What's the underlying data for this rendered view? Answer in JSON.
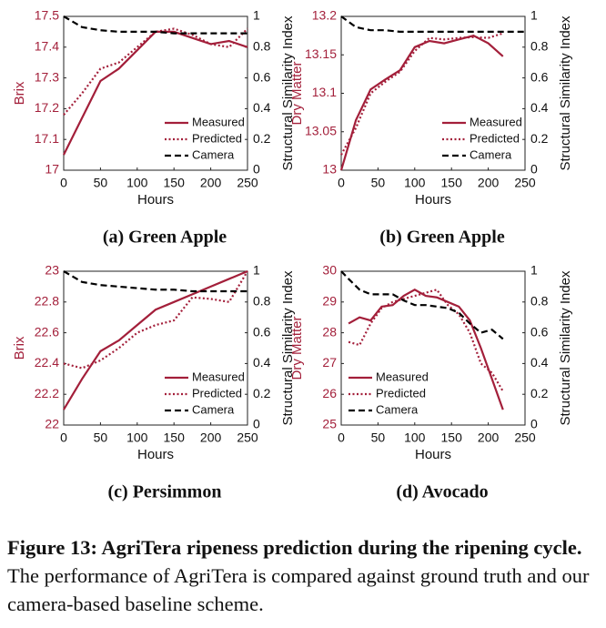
{
  "chart_data": [
    {
      "type": "line",
      "caption": "(a) Green Apple",
      "xlabel": "Hours",
      "ylabel": "Brix",
      "y2label": "Structural Similarity Index",
      "x": [
        0,
        25,
        50,
        75,
        100,
        125,
        150,
        175,
        200,
        225,
        250
      ],
      "series": [
        {
          "name": "Measured",
          "color": "#a31f3a",
          "dash": "solid",
          "values": [
            17.05,
            17.17,
            17.29,
            17.33,
            17.39,
            17.45,
            17.45,
            17.43,
            17.41,
            17.42,
            17.4
          ]
        },
        {
          "name": "Predicted",
          "color": "#a31f3a",
          "dash": "dotted",
          "values": [
            17.18,
            17.25,
            17.33,
            17.35,
            17.4,
            17.45,
            17.46,
            17.44,
            17.41,
            17.4,
            17.46
          ]
        },
        {
          "name": "Camera",
          "color": "#000000",
          "dash": "dashed",
          "axis": "y2",
          "values": [
            1.0,
            0.93,
            0.91,
            0.9,
            0.9,
            0.9,
            0.89,
            0.89,
            0.89,
            0.89,
            0.89
          ]
        }
      ],
      "xlim": [
        0,
        250
      ],
      "xticks": [
        0,
        50,
        100,
        150,
        200,
        250
      ],
      "ylim": [
        17,
        17.5
      ],
      "yticks": [
        17,
        17.1,
        17.2,
        17.3,
        17.4,
        17.5
      ],
      "y2lim": [
        0,
        1
      ],
      "y2ticks": [
        0,
        0.2,
        0.4,
        0.6,
        0.8,
        1
      ],
      "legend": "lower right",
      "ycolor": "#a31f3a"
    },
    {
      "type": "line",
      "caption": "(b) Green Apple",
      "xlabel": "Hours",
      "ylabel": "Dry Matter",
      "y2label": "Structural Similarity Index",
      "x": [
        0,
        20,
        40,
        60,
        80,
        100,
        120,
        140,
        160,
        180,
        200,
        220,
        250
      ],
      "series": [
        {
          "name": "Measured",
          "color": "#a31f3a",
          "dash": "solid",
          "values": [
            13.0,
            13.065,
            13.105,
            13.118,
            13.13,
            13.16,
            13.168,
            13.165,
            13.17,
            13.175,
            13.165,
            13.148,
            null
          ]
        },
        {
          "name": "Predicted",
          "color": "#a31f3a",
          "dash": "dotted",
          "values": [
            13.02,
            13.055,
            13.1,
            13.115,
            13.128,
            13.155,
            13.172,
            13.17,
            13.172,
            13.173,
            13.172,
            13.178,
            null
          ]
        },
        {
          "name": "Camera",
          "color": "#000000",
          "dash": "dashed",
          "axis": "y2",
          "values": [
            1.0,
            0.93,
            0.91,
            0.91,
            0.9,
            0.9,
            0.9,
            0.9,
            0.9,
            0.9,
            0.9,
            0.9,
            0.9
          ]
        }
      ],
      "xlim": [
        0,
        250
      ],
      "xticks": [
        0,
        50,
        100,
        150,
        200,
        250
      ],
      "ylim": [
        13,
        13.2
      ],
      "yticks": [
        13,
        13.05,
        13.1,
        13.15,
        13.2
      ],
      "y2lim": [
        0,
        1
      ],
      "y2ticks": [
        0,
        0.2,
        0.4,
        0.6,
        0.8,
        1
      ],
      "legend": "lower right",
      "ycolor": "#a31f3a"
    },
    {
      "type": "line",
      "caption": "(c) Persimmon",
      "xlabel": "Hours",
      "ylabel": "Brix",
      "y2label": "Structural Similarity Index",
      "x": [
        0,
        25,
        50,
        75,
        100,
        125,
        150,
        175,
        200,
        225,
        250
      ],
      "series": [
        {
          "name": "Measured",
          "color": "#a31f3a",
          "dash": "solid",
          "values": [
            22.1,
            22.3,
            22.48,
            22.55,
            22.65,
            22.75,
            22.8,
            22.85,
            22.9,
            22.95,
            23.0
          ]
        },
        {
          "name": "Predicted",
          "color": "#a31f3a",
          "dash": "dotted",
          "values": [
            22.4,
            22.37,
            22.42,
            22.5,
            22.6,
            22.65,
            22.68,
            22.83,
            22.82,
            22.8,
            23.0
          ]
        },
        {
          "name": "Camera",
          "color": "#000000",
          "dash": "dashed",
          "axis": "y2",
          "values": [
            1.0,
            0.93,
            0.91,
            0.9,
            0.89,
            0.88,
            0.88,
            0.87,
            0.87,
            0.87,
            0.87
          ]
        }
      ],
      "xlim": [
        0,
        250
      ],
      "xticks": [
        0,
        50,
        100,
        150,
        200,
        250
      ],
      "ylim": [
        22,
        23
      ],
      "yticks": [
        22,
        22.2,
        22.4,
        22.6,
        22.8,
        23
      ],
      "y2lim": [
        0,
        1
      ],
      "y2ticks": [
        0,
        0.2,
        0.4,
        0.6,
        0.8,
        1
      ],
      "legend": "lower right",
      "ycolor": "#a31f3a"
    },
    {
      "type": "line",
      "caption": "(d) Avocado",
      "xlabel": "Hours",
      "ylabel": "Dry Matter",
      "y2label": "Structural Similarity Index",
      "x": [
        0,
        10,
        25,
        40,
        55,
        70,
        85,
        100,
        115,
        130,
        145,
        160,
        175,
        190,
        205,
        220
      ],
      "series": [
        {
          "name": "Measured",
          "color": "#a31f3a",
          "dash": "solid",
          "values": [
            null,
            28.3,
            28.5,
            28.4,
            28.85,
            28.9,
            29.2,
            29.4,
            29.2,
            29.15,
            29.0,
            28.85,
            28.4,
            27.5,
            26.5,
            25.5
          ]
        },
        {
          "name": "Predicted",
          "color": "#a31f3a",
          "dash": "dotted",
          "values": [
            null,
            27.7,
            27.6,
            28.3,
            28.8,
            29.0,
            29.1,
            29.2,
            29.3,
            29.4,
            28.9,
            28.6,
            28.0,
            27.0,
            26.7,
            26.1
          ]
        },
        {
          "name": "Camera",
          "color": "#000000",
          "dash": "dashed",
          "axis": "y2",
          "values": [
            1.0,
            0.95,
            0.88,
            0.85,
            0.85,
            0.85,
            0.81,
            0.78,
            0.78,
            0.77,
            0.76,
            0.73,
            0.66,
            0.6,
            0.62,
            0.56
          ]
        }
      ],
      "xlim": [
        0,
        250
      ],
      "xticks": [
        0,
        50,
        100,
        150,
        200,
        250
      ],
      "ylim": [
        25,
        30
      ],
      "yticks": [
        25,
        26,
        27,
        28,
        29,
        30
      ],
      "y2lim": [
        0,
        1
      ],
      "y2ticks": [
        0,
        0.2,
        0.4,
        0.6,
        0.8,
        1
      ],
      "legend": "lower left",
      "ycolor": "#a31f3a"
    }
  ],
  "figure_caption": {
    "label": "Figure 13: AgriTera ripeness prediction during the ripening cycle.",
    "text": "The performance of AgriTera is compared against ground truth and our camera-based baseline scheme."
  }
}
